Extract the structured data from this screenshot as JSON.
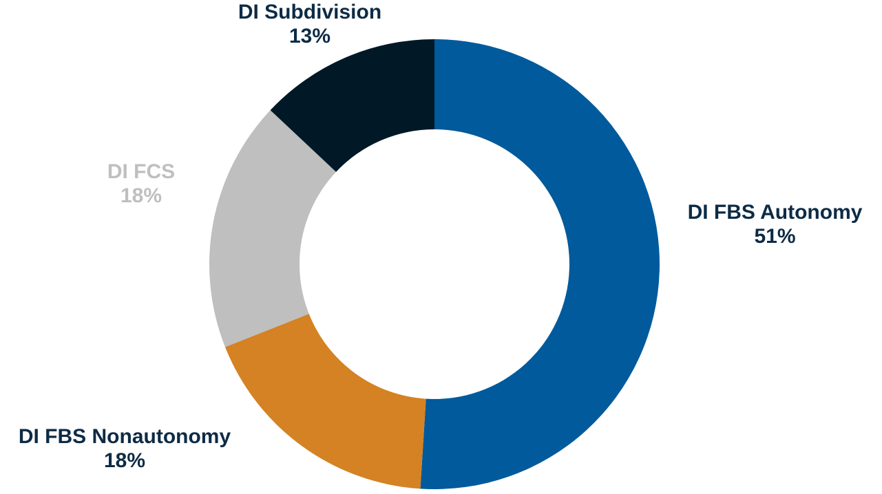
{
  "chart_data": {
    "type": "pie",
    "subtype": "donut",
    "title": "",
    "slices": [
      {
        "label": "DI FBS Autonomy",
        "value": 51,
        "value_label": "51%",
        "color": "#005A9C",
        "label_color": "#0D2B45"
      },
      {
        "label": "DI FBS Nonautonomy",
        "value": 18,
        "value_label": "18%",
        "color": "#D48224",
        "label_color": "#0D2B45"
      },
      {
        "label": "DI FCS",
        "value": 18,
        "value_label": "18%",
        "color": "#BFBFBF",
        "label_color": "#BFBFBF"
      },
      {
        "label": "DI Subdivision",
        "value": 13,
        "value_label": "13%",
        "color": "#011826",
        "label_color": "#0D2B45"
      }
    ],
    "legend": "none",
    "start_angle": "12 o'clock, clockwise"
  }
}
